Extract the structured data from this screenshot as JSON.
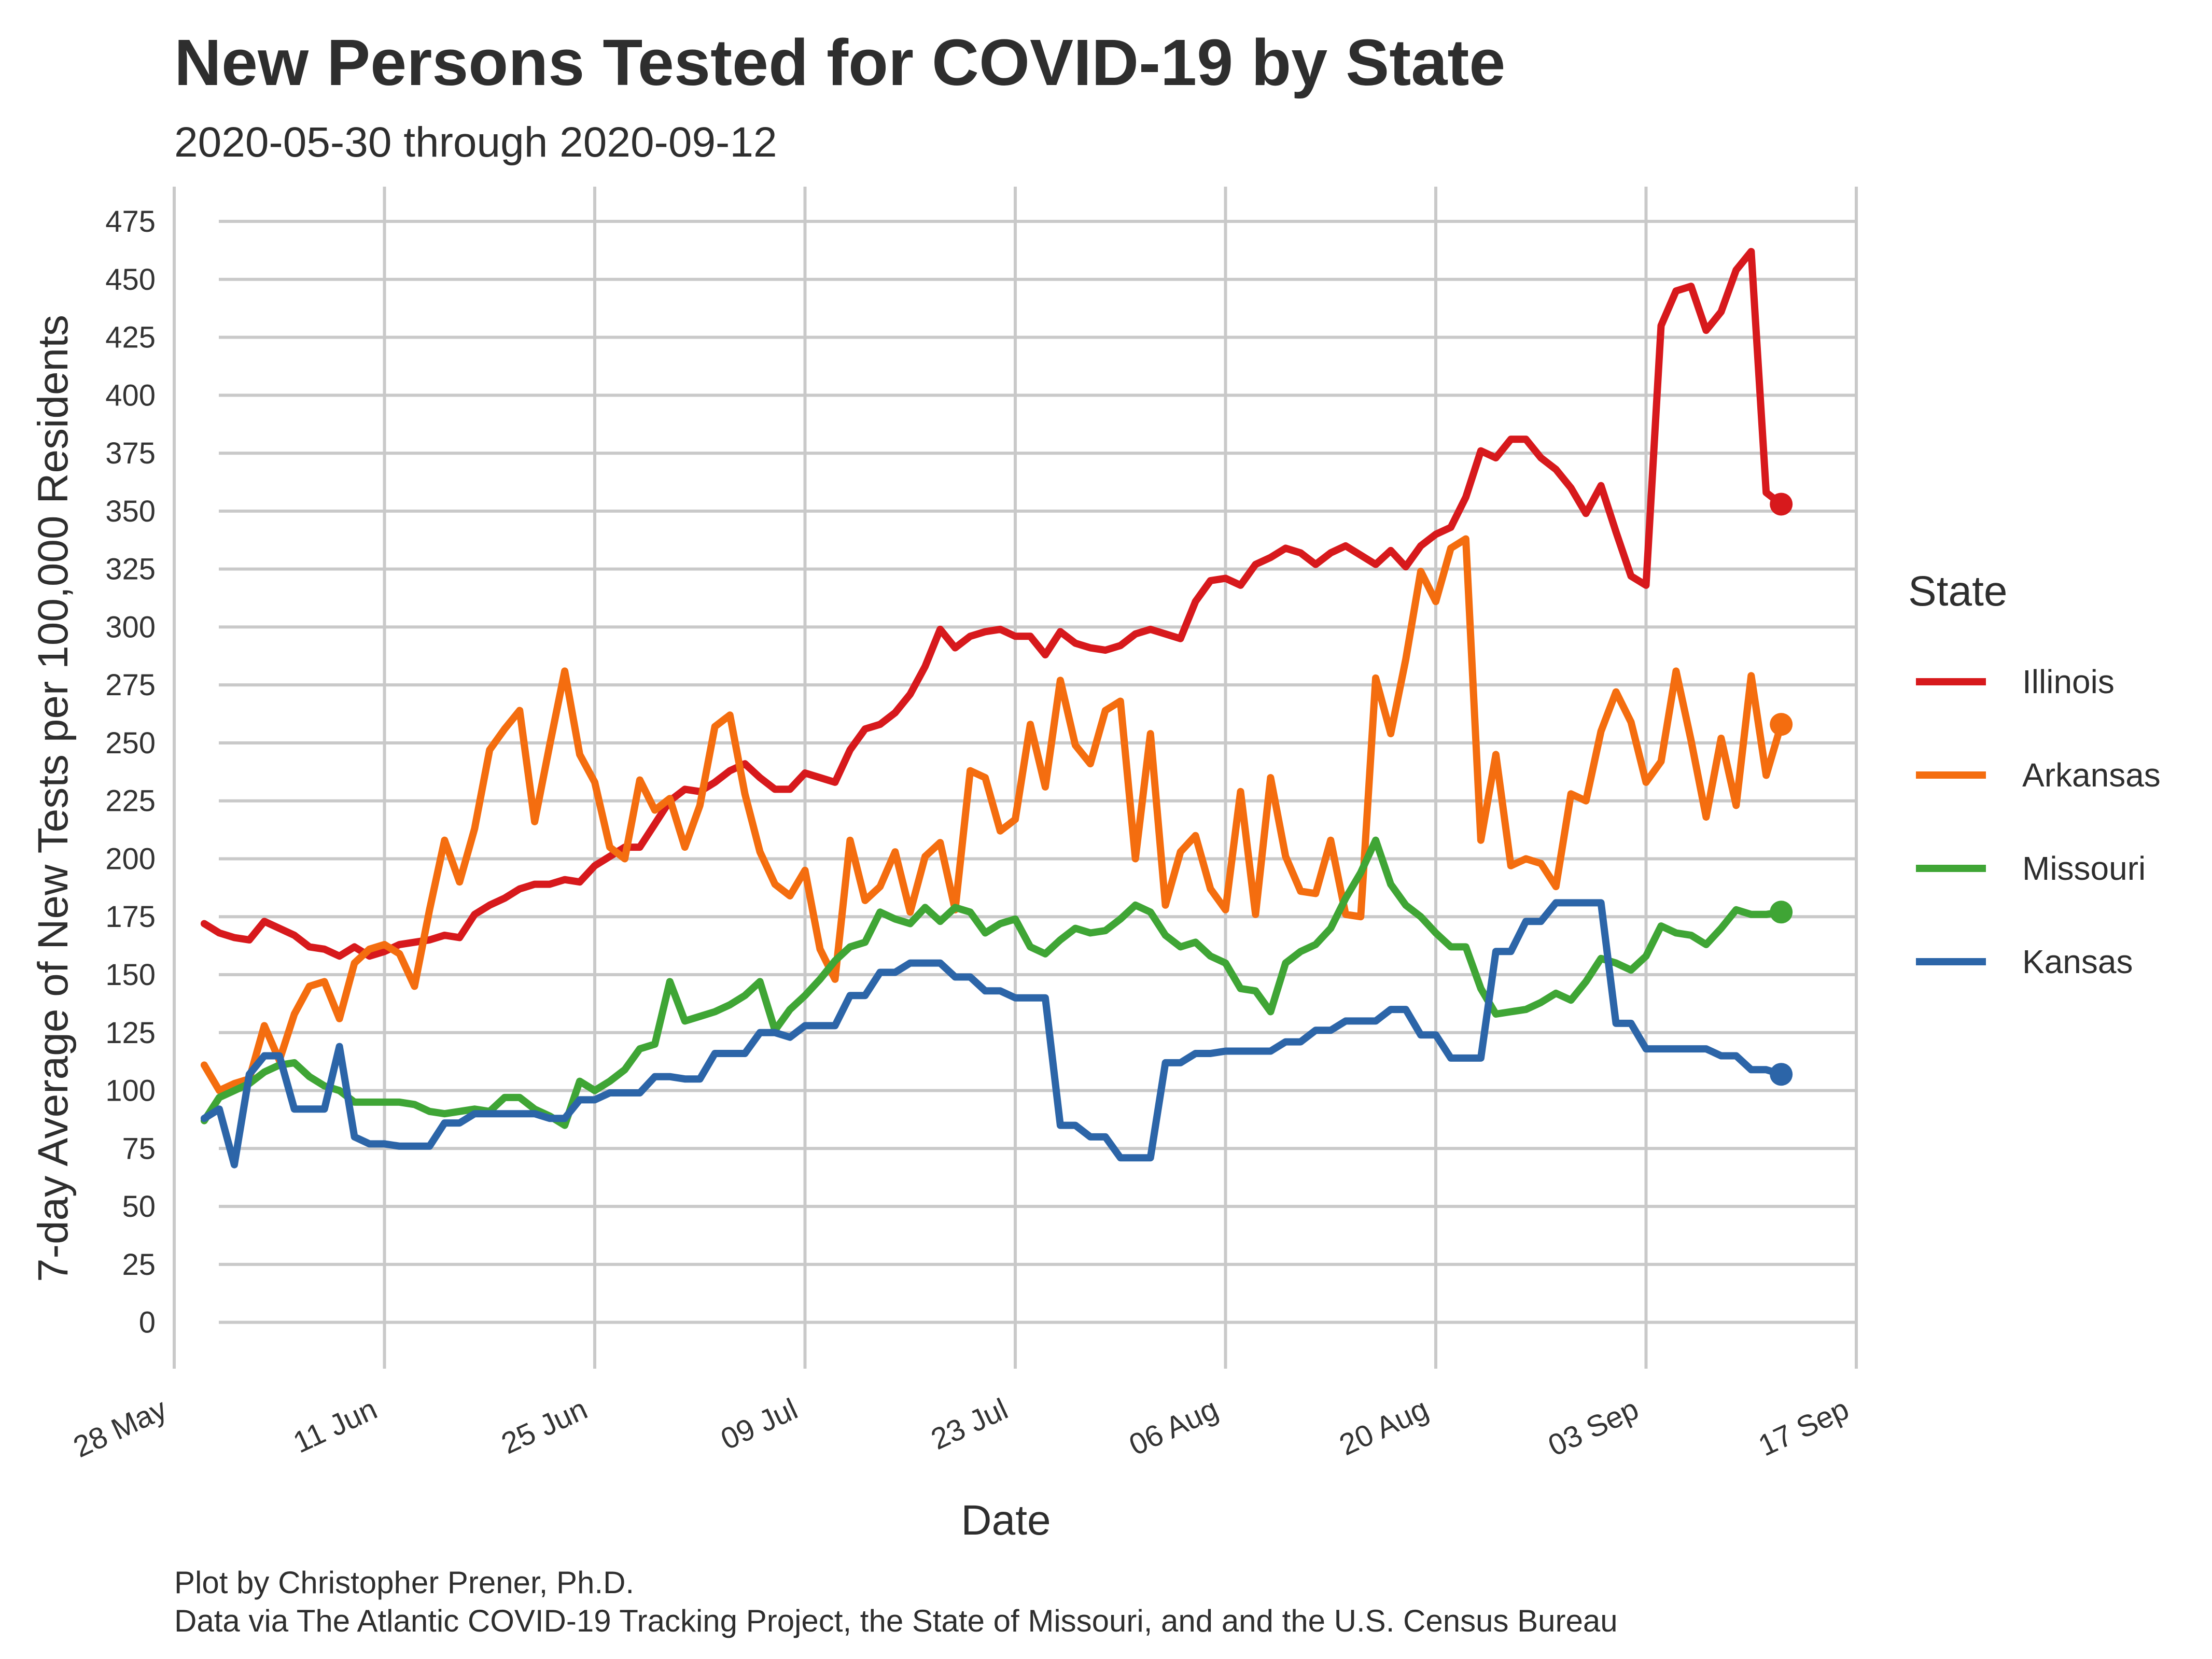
{
  "chart_data": {
    "type": "line",
    "title": "New Persons Tested for COVID-19 by State",
    "subtitle": "2020-05-30 through 2020-09-12",
    "xlabel": "Date",
    "ylabel": "7-day Average of New Tests per 100,000 Residents",
    "x_start_date": "2020-05-30",
    "x_end_date": "2020-09-12",
    "xlim_dates": [
      "2020-05-28",
      "2020-09-17"
    ],
    "x_tick_labels": [
      "28 May",
      "11 Jun",
      "25 Jun",
      "09 Jul",
      "23 Jul",
      "06 Aug",
      "20 Aug",
      "03 Sep",
      "17 Sep"
    ],
    "y_ticks": [
      0,
      25,
      50,
      75,
      100,
      125,
      150,
      175,
      200,
      225,
      250,
      275,
      300,
      325,
      350,
      375,
      400,
      425,
      450,
      475
    ],
    "ylim": [
      -20,
      490
    ],
    "grid": true,
    "legend_title": "State",
    "legend_position": "right",
    "caption": [
      "Plot by Christopher Prener, Ph.D.",
      "Data via The Atlantic COVID-19 Tracking Project, the State of Missouri, and and the U.S. Census Bureau"
    ],
    "series": [
      {
        "name": "Illinois",
        "color": "#d7191c",
        "values": [
          172,
          168,
          166,
          165,
          173,
          170,
          167,
          162,
          161,
          158,
          162,
          158,
          160,
          163,
          164,
          165,
          167,
          166,
          176,
          180,
          183,
          187,
          189,
          189,
          191,
          190,
          197,
          201,
          205,
          205,
          215,
          225,
          230,
          229,
          233,
          238,
          241,
          235,
          230,
          230,
          237,
          235,
          233,
          247,
          256,
          258,
          263,
          271,
          283,
          299,
          291,
          296,
          298,
          299,
          296,
          296,
          288,
          298,
          293,
          291,
          290,
          292,
          297,
          299,
          297,
          295,
          311,
          320,
          321,
          318,
          327,
          330,
          334,
          332,
          327,
          332,
          335,
          331,
          327,
          333,
          326,
          335,
          340,
          343,
          356,
          376,
          373,
          381,
          381,
          373,
          368,
          360,
          349,
          361,
          341,
          322,
          318,
          430,
          445,
          447,
          428,
          436,
          454,
          462,
          358,
          353
        ]
      },
      {
        "name": "Arkansas",
        "color": "#f46d0f",
        "values": [
          111,
          100,
          103,
          105,
          128,
          113,
          133,
          145,
          147,
          131,
          155,
          161,
          163,
          159,
          145,
          178,
          208,
          190,
          213,
          247,
          256,
          264,
          216,
          249,
          281,
          245,
          233,
          205,
          200,
          234,
          221,
          226,
          205,
          223,
          257,
          262,
          228,
          203,
          189,
          184,
          195,
          161,
          148,
          208,
          182,
          188,
          203,
          177,
          201,
          207,
          178,
          238,
          235,
          212,
          217,
          258,
          231,
          277,
          249,
          241,
          264,
          268,
          200,
          254,
          180,
          203,
          210,
          187,
          178,
          229,
          176,
          235,
          201,
          186,
          185,
          208,
          176,
          175,
          278,
          254,
          286,
          324,
          311,
          334,
          338,
          208,
          245,
          197,
          200,
          198,
          188,
          228,
          225,
          255,
          272,
          259,
          233,
          242,
          281,
          251,
          218,
          252,
          223,
          279,
          236,
          258
        ]
      },
      {
        "name": "Missouri",
        "color": "#3fa535",
        "values": [
          87,
          97,
          100,
          103,
          108,
          111,
          112,
          106,
          102,
          100,
          95,
          95,
          95,
          95,
          94,
          91,
          90,
          91,
          92,
          91,
          97,
          97,
          92,
          89,
          85,
          104,
          100,
          104,
          109,
          118,
          120,
          147,
          130,
          132,
          134,
          137,
          141,
          147,
          126,
          135,
          141,
          148,
          156,
          162,
          164,
          177,
          174,
          172,
          179,
          173,
          179,
          177,
          168,
          172,
          174,
          162,
          159,
          165,
          170,
          168,
          169,
          174,
          180,
          177,
          167,
          162,
          164,
          158,
          155,
          144,
          143,
          134,
          155,
          160,
          163,
          170,
          183,
          194,
          208,
          189,
          180,
          175,
          168,
          162,
          162,
          144,
          133,
          134,
          135,
          138,
          142,
          139,
          147,
          157,
          155,
          152,
          158,
          171,
          168,
          167,
          163,
          170,
          178,
          176,
          176,
          177
        ]
      },
      {
        "name": "Kansas",
        "color": "#2c65a8",
        "values": [
          88,
          92,
          68,
          107,
          115,
          115,
          92,
          92,
          92,
          119,
          80,
          77,
          77,
          76,
          76,
          76,
          86,
          86,
          90,
          90,
          90,
          90,
          90,
          88,
          88,
          96,
          96,
          99,
          99,
          99,
          106,
          106,
          105,
          105,
          116,
          116,
          116,
          125,
          125,
          123,
          128,
          128,
          128,
          141,
          141,
          151,
          151,
          155,
          155,
          155,
          149,
          149,
          143,
          143,
          140,
          140,
          140,
          85,
          85,
          80,
          80,
          71,
          71,
          71,
          112,
          112,
          116,
          116,
          117,
          117,
          117,
          117,
          121,
          121,
          126,
          126,
          130,
          130,
          130,
          135,
          135,
          124,
          124,
          114,
          114,
          114,
          160,
          160,
          173,
          173,
          181,
          181,
          181,
          181,
          129,
          129,
          118,
          118,
          118,
          118,
          118,
          115,
          115,
          109,
          109,
          107
        ]
      }
    ]
  }
}
